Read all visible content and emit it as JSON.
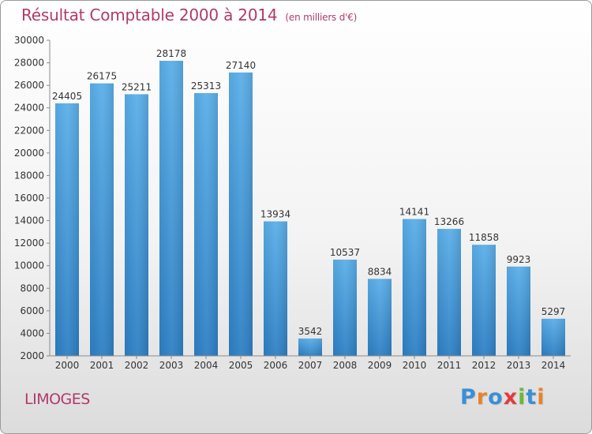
{
  "chart_data": {
    "type": "bar",
    "title": "Résultat Comptable 2000 à 2014",
    "subtitle": "(en milliers d'€)",
    "categories": [
      "2000",
      "2001",
      "2002",
      "2003",
      "2004",
      "2005",
      "2006",
      "2007",
      "2008",
      "2009",
      "2010",
      "2011",
      "2012",
      "2013",
      "2014"
    ],
    "values": [
      24405,
      26175,
      25211,
      28178,
      25313,
      27140,
      13934,
      3542,
      10537,
      8834,
      14141,
      13266,
      11858,
      9923,
      5297
    ],
    "ylim": [
      2000,
      30000
    ],
    "yticks": [
      2000,
      4000,
      6000,
      8000,
      10000,
      12000,
      14000,
      16000,
      18000,
      20000,
      22000,
      24000,
      26000,
      28000,
      30000
    ],
    "grid": false,
    "bar_color_top": "#5aaee8",
    "bar_color_bottom": "#2d7fc4"
  },
  "location": "LIMOGES",
  "brand": {
    "letters": [
      "P",
      "r",
      "o",
      "x",
      "i",
      "t",
      "i"
    ],
    "colors": [
      "#3b8fd4",
      "#e8822a",
      "#3b8fd4",
      "#e33b3b",
      "#6cb83a",
      "#3b8fd4",
      "#e8822a"
    ]
  }
}
